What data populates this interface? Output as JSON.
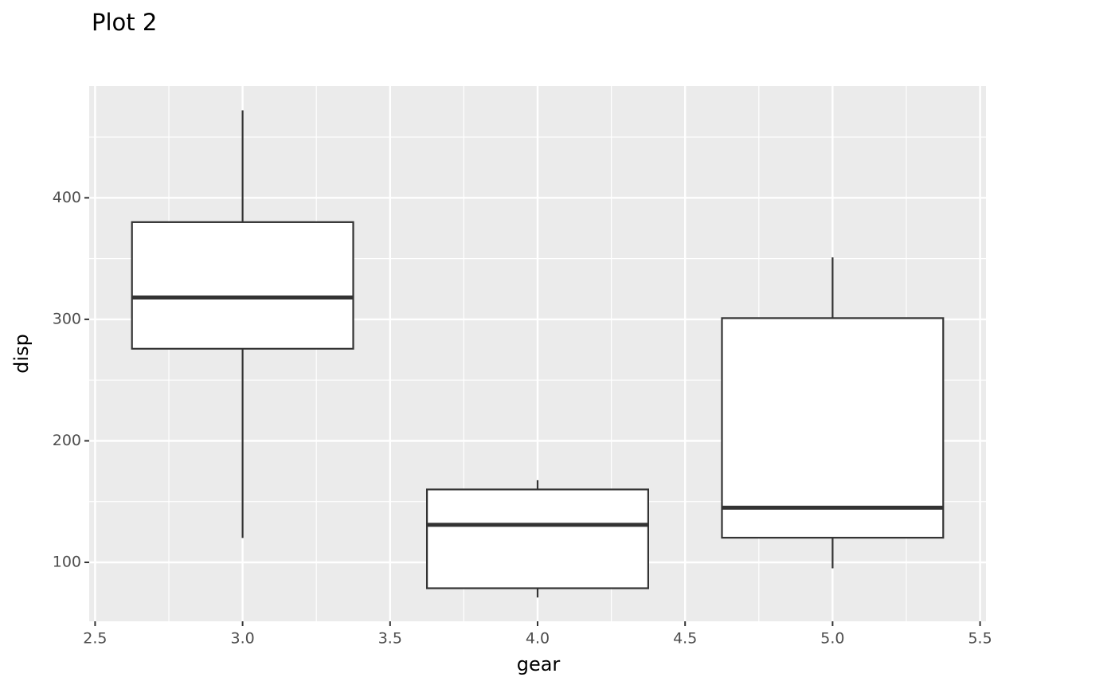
{
  "chart_data": {
    "type": "boxplot",
    "title": "Plot 2",
    "x_label": "gear",
    "y_label": "disp",
    "boxes": [
      {
        "x": 3,
        "whisker_low": 120.1,
        "q1": 275.8,
        "median": 318,
        "q3": 380,
        "whisker_high": 472
      },
      {
        "x": 4,
        "whisker_low": 71.1,
        "q1": 78.7,
        "median": 130.9,
        "q3": 160,
        "whisker_high": 167.6
      },
      {
        "x": 5,
        "whisker_low": 95.1,
        "q1": 120.3,
        "median": 145,
        "q3": 301,
        "whisker_high": 351
      }
    ],
    "box_width": 0.75,
    "box_fill": "#ffffff",
    "box_stroke": "#333333",
    "panel_color": "#ebebeb",
    "xlim": [
      2.48,
      5.52
    ],
    "xticks": [
      2.5,
      {
        "value": 3,
        "label": "3.0"
      },
      3.5,
      {
        "value": 4,
        "label": "4.0"
      },
      4.5,
      {
        "value": 5,
        "label": "5.0"
      },
      5.5
    ],
    "ylim": [
      51.5,
      492
    ],
    "yticks": [
      100,
      200,
      300,
      400
    ],
    "grid": true
  }
}
